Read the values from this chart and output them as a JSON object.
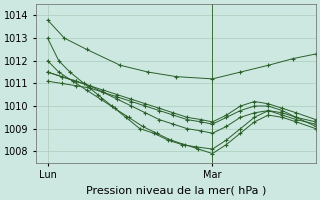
{
  "bg_color": "#cce8e0",
  "grid_color": "#aaccbb",
  "line_color": "#2a5e2a",
  "xlim": [
    0,
    1
  ],
  "ylim": [
    1007.5,
    1014.5
  ],
  "yticks": [
    1008,
    1009,
    1010,
    1011,
    1012,
    1013,
    1014
  ],
  "xtick_positions": [
    0.04,
    0.63
  ],
  "xtick_labels": [
    "Lun",
    "Mar"
  ],
  "xlabel": "Pression niveau de la mer( hPa )",
  "xlabel_fontsize": 8,
  "tick_fontsize": 7,
  "vline_x": 0.63,
  "series": [
    {
      "x": [
        0.04,
        0.1,
        0.18,
        0.3,
        0.4,
        0.5,
        0.63,
        0.73,
        0.83,
        0.92,
        1.0
      ],
      "y": [
        1013.8,
        1013.0,
        1012.5,
        1011.8,
        1011.5,
        1011.3,
        1011.2,
        1011.5,
        1011.8,
        1012.1,
        1012.3
      ]
    },
    {
      "x": [
        0.04,
        0.08,
        0.12,
        0.17,
        0.22,
        0.27,
        0.32,
        0.37,
        0.42,
        0.47,
        0.52,
        0.57,
        0.63,
        0.68,
        0.73,
        0.78,
        0.83,
        0.88,
        0.93,
        1.0
      ],
      "y": [
        1013.0,
        1012.0,
        1011.5,
        1011.0,
        1010.5,
        1010.0,
        1009.5,
        1009.0,
        1008.8,
        1008.5,
        1008.3,
        1008.2,
        1008.1,
        1008.5,
        1009.0,
        1009.5,
        1009.8,
        1009.7,
        1009.5,
        1009.1
      ]
    },
    {
      "x": [
        0.04,
        0.08,
        0.13,
        0.18,
        0.23,
        0.28,
        0.33,
        0.38,
        0.43,
        0.48,
        0.53,
        0.58,
        0.63,
        0.68,
        0.73,
        0.78,
        0.83,
        0.88,
        0.93,
        1.0
      ],
      "y": [
        1012.0,
        1011.5,
        1011.1,
        1010.7,
        1010.3,
        1009.9,
        1009.5,
        1009.1,
        1008.8,
        1008.5,
        1008.3,
        1008.1,
        1007.9,
        1008.3,
        1008.8,
        1009.3,
        1009.6,
        1009.5,
        1009.3,
        1009.0
      ]
    },
    {
      "x": [
        0.04,
        0.09,
        0.14,
        0.19,
        0.24,
        0.29,
        0.34,
        0.39,
        0.44,
        0.49,
        0.54,
        0.59,
        0.63,
        0.68,
        0.73,
        0.78,
        0.83,
        0.88,
        0.93,
        1.0
      ],
      "y": [
        1011.5,
        1011.3,
        1011.1,
        1010.9,
        1010.6,
        1010.3,
        1010.0,
        1009.7,
        1009.4,
        1009.2,
        1009.0,
        1008.9,
        1008.8,
        1009.1,
        1009.5,
        1009.7,
        1009.8,
        1009.6,
        1009.4,
        1009.2
      ]
    },
    {
      "x": [
        0.04,
        0.09,
        0.14,
        0.19,
        0.24,
        0.29,
        0.34,
        0.39,
        0.44,
        0.49,
        0.54,
        0.59,
        0.63,
        0.68,
        0.73,
        0.78,
        0.83,
        0.88,
        0.93,
        1.0
      ],
      "y": [
        1011.1,
        1011.0,
        1010.9,
        1010.8,
        1010.6,
        1010.4,
        1010.2,
        1010.0,
        1009.8,
        1009.6,
        1009.4,
        1009.3,
        1009.2,
        1009.5,
        1009.8,
        1010.0,
        1010.0,
        1009.8,
        1009.5,
        1009.3
      ]
    },
    {
      "x": [
        0.04,
        0.09,
        0.14,
        0.19,
        0.24,
        0.29,
        0.34,
        0.39,
        0.44,
        0.49,
        0.54,
        0.59,
        0.63,
        0.68,
        0.73,
        0.78,
        0.83,
        0.88,
        0.93,
        1.0
      ],
      "y": [
        1011.5,
        1011.3,
        1011.1,
        1010.9,
        1010.7,
        1010.5,
        1010.3,
        1010.1,
        1009.9,
        1009.7,
        1009.5,
        1009.4,
        1009.3,
        1009.6,
        1010.0,
        1010.2,
        1010.1,
        1009.9,
        1009.7,
        1009.4
      ]
    }
  ]
}
